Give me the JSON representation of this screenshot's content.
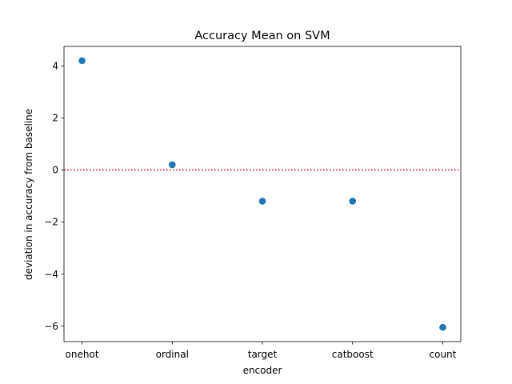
{
  "chart_data": {
    "type": "scatter",
    "title": "Accuracy Mean on SVM",
    "xlabel": "encoder",
    "ylabel": "deviation in accuracy from baseline",
    "categories": [
      "onehot",
      "ordinal",
      "target",
      "catboost",
      "count"
    ],
    "values": [
      4.2,
      0.2,
      -1.2,
      -1.2,
      -6.05
    ],
    "ylim": [
      -6.6,
      4.75
    ],
    "yticks": [
      4,
      2,
      0,
      -2,
      -4,
      -6
    ],
    "ytick_labels": [
      "4",
      "2",
      "0",
      "−2",
      "−4",
      "−6"
    ],
    "reference_line": {
      "y": 0,
      "color": "#ff0000",
      "style": "dotted"
    },
    "marker_color": "#1f77b4",
    "grid": false,
    "legend": "none"
  }
}
